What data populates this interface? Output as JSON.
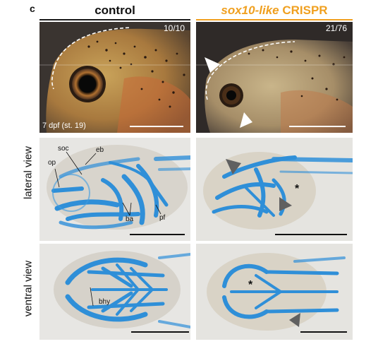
{
  "figure": {
    "panel_letter": "c",
    "columns": [
      {
        "title": "control",
        "title_rule_color": "#1a1a1a"
      },
      {
        "title_italic": "sox10-like",
        "title_rest": " CRISPR",
        "title_color": "#f0a020"
      }
    ],
    "row_labels": {
      "lateral": "lateral view",
      "ventral": "ventral view"
    },
    "panels": {
      "control_live": {
        "ratio": "10/10",
        "stage": "7 dpf (st. 19)"
      },
      "crispr_live": {
        "ratio": "21/76"
      },
      "control_lateral": {
        "labels": {
          "soc": "soc",
          "eb": "eb",
          "op": "op",
          "ba": "ba",
          "pf": "pf"
        }
      },
      "crispr_lateral": {
        "asterisk": "*"
      },
      "control_ventral": {
        "labels": {
          "bhy": "bhy"
        }
      },
      "crispr_ventral": {
        "asterisk": "*"
      }
    },
    "colors": {
      "live_bg": "#3a3430",
      "cartilage": "#2f8fd8",
      "tissue_bg": "#e7e6e3",
      "orange": "#f0a020"
    }
  }
}
